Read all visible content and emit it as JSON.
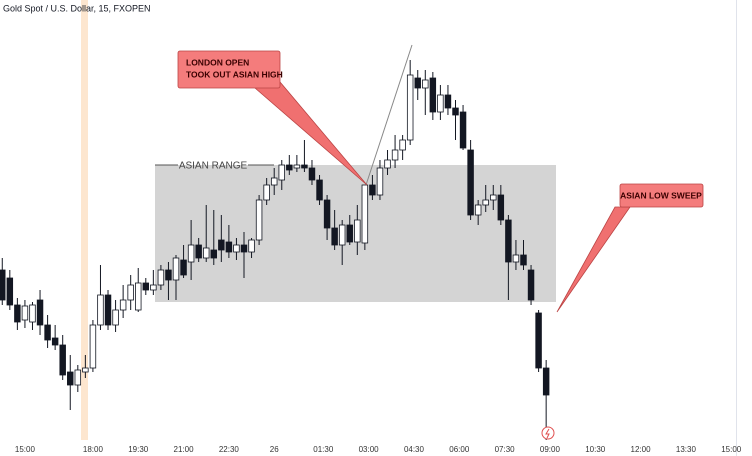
{
  "chart_data": {
    "type": "candlestick",
    "title": "Gold Spot / U.S. Dollar, 15, FXOPEN",
    "x": [
      -3,
      -2,
      -1,
      0,
      1,
      2,
      3,
      4,
      5,
      6,
      7,
      8,
      9,
      10,
      11,
      12,
      13,
      14,
      15,
      16,
      17,
      18,
      19,
      20,
      21,
      22,
      23,
      24,
      25,
      26,
      27,
      28,
      29,
      30,
      31,
      32,
      33,
      34,
      35,
      36,
      37,
      38,
      39,
      40,
      41,
      42,
      43,
      44,
      45,
      46,
      47,
      48,
      49,
      50,
      51,
      52,
      53,
      54,
      55,
      56,
      57,
      58,
      59,
      60,
      61,
      62,
      63,
      64,
      65,
      66,
      67,
      68,
      69
    ],
    "open": [
      170,
      162,
      135,
      120,
      118,
      140,
      115,
      102,
      95,
      68,
      55,
      68,
      72,
      115,
      145,
      115,
      130,
      140,
      130,
      157,
      150,
      155,
      170,
      160,
      180,
      178,
      195,
      182,
      190,
      200,
      198,
      188,
      195,
      188,
      200,
      240,
      255,
      260,
      275,
      272,
      275,
      272,
      260,
      240,
      212,
      195,
      215,
      198,
      197,
      255,
      245,
      272,
      280,
      290,
      300,
      362,
      352,
      362,
      328,
      345,
      332,
      328,
      290,
      225,
      235,
      240,
      245,
      220,
      178,
      185,
      170,
      127,
      72
    ],
    "high": [
      182,
      170,
      142,
      140,
      138,
      150,
      125,
      115,
      105,
      85,
      75,
      85,
      120,
      175,
      150,
      140,
      155,
      165,
      172,
      162,
      170,
      175,
      178,
      185,
      195,
      220,
      202,
      235,
      230,
      225,
      215,
      202,
      208,
      202,
      245,
      262,
      272,
      280,
      285,
      285,
      300,
      280,
      265,
      245,
      230,
      220,
      225,
      235,
      255,
      265,
      280,
      290,
      305,
      305,
      380,
      370,
      370,
      368,
      355,
      355,
      340,
      335,
      300,
      240,
      255,
      255,
      255,
      225,
      200,
      200,
      175,
      130,
      80
    ],
    "low": [
      135,
      130,
      110,
      112,
      110,
      105,
      92,
      90,
      60,
      30,
      48,
      62,
      68,
      110,
      110,
      108,
      122,
      130,
      128,
      145,
      145,
      150,
      140,
      140,
      162,
      160,
      178,
      178,
      175,
      178,
      182,
      180,
      162,
      182,
      195,
      235,
      245,
      250,
      265,
      268,
      268,
      255,
      235,
      200,
      190,
      175,
      195,
      185,
      190,
      240,
      240,
      265,
      272,
      280,
      295,
      340,
      325,
      320,
      320,
      325,
      300,
      290,
      220,
      215,
      228,
      230,
      215,
      140,
      170,
      170,
      135,
      68,
      0
    ],
    "close": [
      140,
      135,
      118,
      134,
      135,
      115,
      100,
      95,
      65,
      55,
      70,
      72,
      115,
      145,
      115,
      130,
      140,
      155,
      157,
      150,
      155,
      170,
      160,
      182,
      165,
      195,
      182,
      192,
      182,
      190,
      188,
      195,
      188,
      200,
      240,
      255,
      262,
      275,
      270,
      275,
      272,
      260,
      240,
      212,
      195,
      215,
      198,
      220,
      255,
      245,
      272,
      280,
      290,
      300,
      365,
      352,
      360,
      328,
      345,
      332,
      325,
      292,
      225,
      235,
      240,
      245,
      220,
      178,
      185,
      175,
      140,
      72,
      45
    ],
    "colors": {
      "up": "#ffffff",
      "down": "#131722",
      "wick": "#131722"
    },
    "xlim": [
      -3.3,
      94
    ],
    "ylim": [
      0,
      440
    ],
    "xticks": [
      {
        "value": 0,
        "label": "15:00"
      },
      {
        "value": 9,
        "label": "18:00"
      },
      {
        "value": 15,
        "label": "19:30"
      },
      {
        "value": 21,
        "label": "21:00"
      },
      {
        "value": 27,
        "label": "22:30"
      },
      {
        "value": 33,
        "label": "26"
      },
      {
        "value": 39.5,
        "label": "01:30"
      },
      {
        "value": 45.5,
        "label": "03:00"
      },
      {
        "value": 51.5,
        "label": "04:30"
      },
      {
        "value": 57.5,
        "label": "06:00"
      },
      {
        "value": 63.5,
        "label": "07:30"
      },
      {
        "value": 69.5,
        "label": "09:00"
      },
      {
        "value": 75.5,
        "label": "10:30"
      },
      {
        "value": 81.5,
        "label": "12:00"
      },
      {
        "value": 87.5,
        "label": "13:30"
      },
      {
        "value": 93.5,
        "label": "15:00"
      }
    ],
    "annotations": [
      "ASIAN RANGE",
      "LONDON OPEN",
      "TOOK OUT ASIAN HIGH",
      "ASIAN LOW SWEEP"
    ]
  }
}
